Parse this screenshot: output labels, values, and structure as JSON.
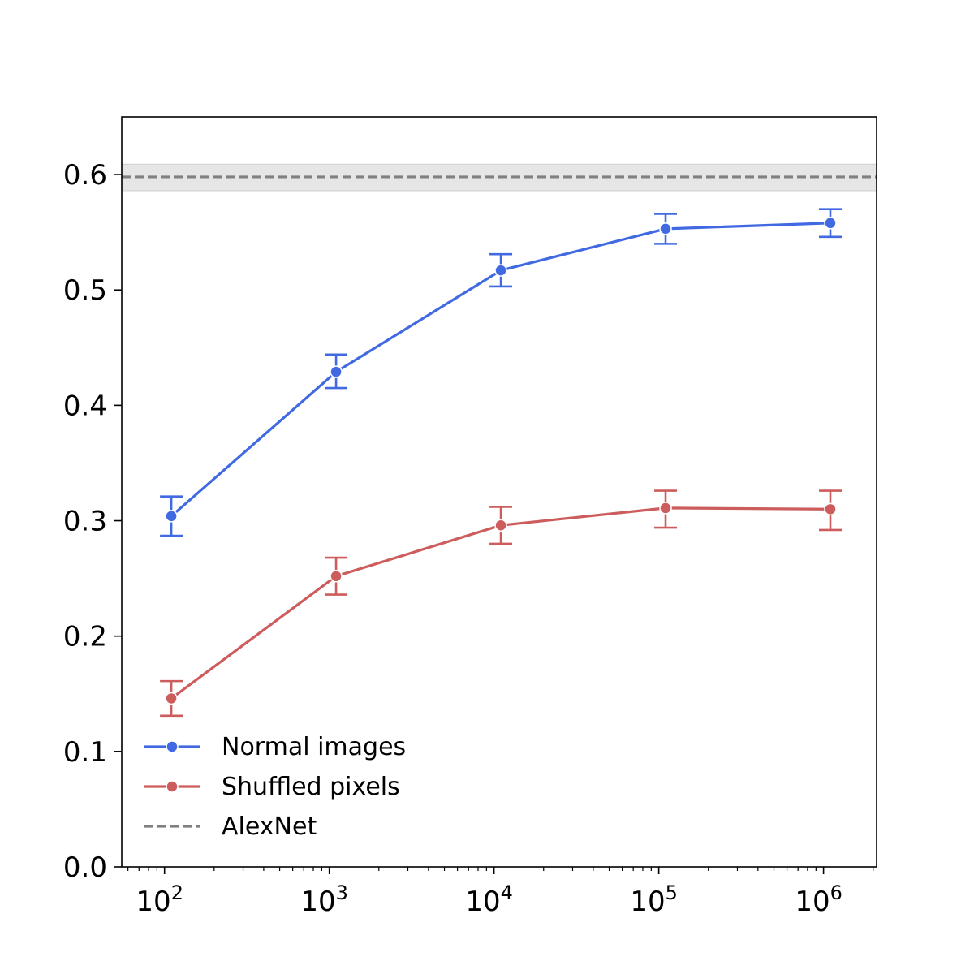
{
  "chart_data": {
    "type": "line",
    "title": "",
    "xlabel": "",
    "ylabel": "",
    "xscale": "log",
    "xlim": [
      55,
      2100000
    ],
    "ylim": [
      0.0,
      0.65
    ],
    "grid": false,
    "legend_position": "lower-left",
    "y_ticks": [
      0.0,
      0.1,
      0.2,
      0.3,
      0.4,
      0.5,
      0.6
    ],
    "y_tick_labels": [
      "0.0",
      "0.1",
      "0.2",
      "0.3",
      "0.4",
      "0.5",
      "0.6"
    ],
    "x_ticks": [
      {
        "value": 100,
        "base": "10",
        "exp": "2"
      },
      {
        "value": 1000,
        "base": "10",
        "exp": "3"
      },
      {
        "value": 10000,
        "base": "10",
        "exp": "4"
      },
      {
        "value": 100000,
        "base": "10",
        "exp": "5"
      },
      {
        "value": 1000000,
        "base": "10",
        "exp": "6"
      }
    ],
    "x": [
      110,
      1100,
      11000,
      110000,
      1100000
    ],
    "series": [
      {
        "name": "Normal images",
        "color": "#4169e1",
        "values": [
          0.304,
          0.429,
          0.517,
          0.553,
          0.558
        ],
        "err_low": [
          0.287,
          0.415,
          0.503,
          0.54,
          0.546
        ],
        "err_high": [
          0.321,
          0.444,
          0.531,
          0.566,
          0.57
        ]
      },
      {
        "name": "Shuffled pixels",
        "color": "#cd5c5c",
        "values": [
          0.146,
          0.252,
          0.296,
          0.311,
          0.31
        ],
        "err_low": [
          0.131,
          0.236,
          0.28,
          0.294,
          0.292
        ],
        "err_high": [
          0.161,
          0.268,
          0.312,
          0.326,
          0.326
        ]
      }
    ],
    "reference_line": {
      "name": "AlexNet",
      "color": "#808080",
      "band_color": "#e6e6e6",
      "value": 0.598,
      "band_low": 0.586,
      "band_high": 0.609
    }
  }
}
